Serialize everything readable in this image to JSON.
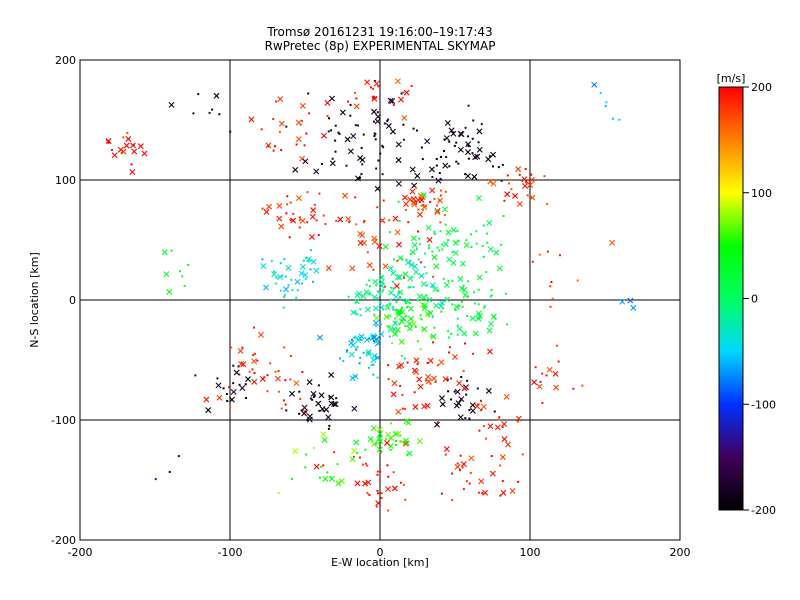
{
  "chart_data": {
    "type": "scatter",
    "title": "Tromsø 20161231 19:16:00–19:17:43",
    "subtitle": "RwPretec (8p) EXPERIMENTAL SKYMAP",
    "xlabel": "E-W location [km]",
    "ylabel": "N-S location [km]",
    "xlim": [
      -200,
      200
    ],
    "ylim": [
      -200,
      200
    ],
    "xticks": [
      "-200",
      "-100",
      "0",
      "100",
      "200"
    ],
    "yticks": [
      "-200",
      "-100",
      "0",
      "100",
      "200"
    ],
    "grid_lines_x": [
      -100,
      0,
      100
    ],
    "grid_lines_y": [
      -100,
      0,
      100
    ],
    "colorbar": {
      "label": "[m/s]",
      "range": [
        -200,
        200
      ],
      "ticks": [
        "200",
        "100",
        "0",
        "-100",
        "-200"
      ]
    },
    "clusters": [
      {
        "x": -170,
        "y": 125,
        "n": 20,
        "spread": 12,
        "v": 190
      },
      {
        "x": -110,
        "y": 160,
        "n": 8,
        "spread": 18,
        "v": -180
      },
      {
        "x": -60,
        "y": 140,
        "n": 25,
        "spread": 18,
        "v": 190
      },
      {
        "x": -10,
        "y": 135,
        "n": 70,
        "spread": 28,
        "v": -185
      },
      {
        "x": 55,
        "y": 125,
        "n": 55,
        "spread": 22,
        "v": -190
      },
      {
        "x": 0,
        "y": 175,
        "n": 20,
        "spread": 15,
        "v": 185
      },
      {
        "x": 95,
        "y": 95,
        "n": 25,
        "spread": 15,
        "v": 185
      },
      {
        "x": 150,
        "y": 160,
        "n": 6,
        "spread": 12,
        "v": -60
      },
      {
        "x": -55,
        "y": 70,
        "n": 30,
        "spread": 16,
        "v": 190
      },
      {
        "x": 30,
        "y": 80,
        "n": 35,
        "spread": 10,
        "v": 175
      },
      {
        "x": 40,
        "y": 40,
        "n": 80,
        "spread": 28,
        "v": 10
      },
      {
        "x": 0,
        "y": 50,
        "n": 40,
        "spread": 25,
        "v": 185
      },
      {
        "x": -60,
        "y": 20,
        "n": 40,
        "spread": 14,
        "v": -40
      },
      {
        "x": 10,
        "y": 5,
        "n": 90,
        "spread": 18,
        "v": -15
      },
      {
        "x": 20,
        "y": -20,
        "n": 50,
        "spread": 15,
        "v": 50
      },
      {
        "x": 60,
        "y": -10,
        "n": 45,
        "spread": 18,
        "v": 20
      },
      {
        "x": -10,
        "y": -40,
        "n": 50,
        "spread": 16,
        "v": -55
      },
      {
        "x": -80,
        "y": -60,
        "n": 40,
        "spread": 22,
        "v": 185
      },
      {
        "x": -100,
        "y": -70,
        "n": 18,
        "spread": 14,
        "v": -190
      },
      {
        "x": -40,
        "y": -90,
        "n": 35,
        "spread": 16,
        "v": -190
      },
      {
        "x": 55,
        "y": -85,
        "n": 25,
        "spread": 14,
        "v": -195
      },
      {
        "x": 40,
        "y": -60,
        "n": 50,
        "spread": 25,
        "v": 190
      },
      {
        "x": 5,
        "y": -115,
        "n": 35,
        "spread": 14,
        "v": 50
      },
      {
        "x": 0,
        "y": -150,
        "n": 35,
        "spread": 22,
        "v": 190
      },
      {
        "x": 60,
        "y": -150,
        "n": 30,
        "spread": 22,
        "v": 190
      },
      {
        "x": -40,
        "y": -140,
        "n": 20,
        "spread": 18,
        "v": 60
      },
      {
        "x": -130,
        "y": 30,
        "n": 8,
        "spread": 15,
        "v": 30
      },
      {
        "x": 120,
        "y": 20,
        "n": 10,
        "spread": 20,
        "v": 185
      },
      {
        "x": 110,
        "y": -70,
        "n": 14,
        "spread": 20,
        "v": 190
      },
      {
        "x": 160,
        "y": 0,
        "n": 3,
        "spread": 10,
        "v": -80
      },
      {
        "x": -140,
        "y": -140,
        "n": 3,
        "spread": 10,
        "v": -160
      },
      {
        "x": 80,
        "y": -110,
        "n": 15,
        "spread": 15,
        "v": 185
      }
    ]
  }
}
